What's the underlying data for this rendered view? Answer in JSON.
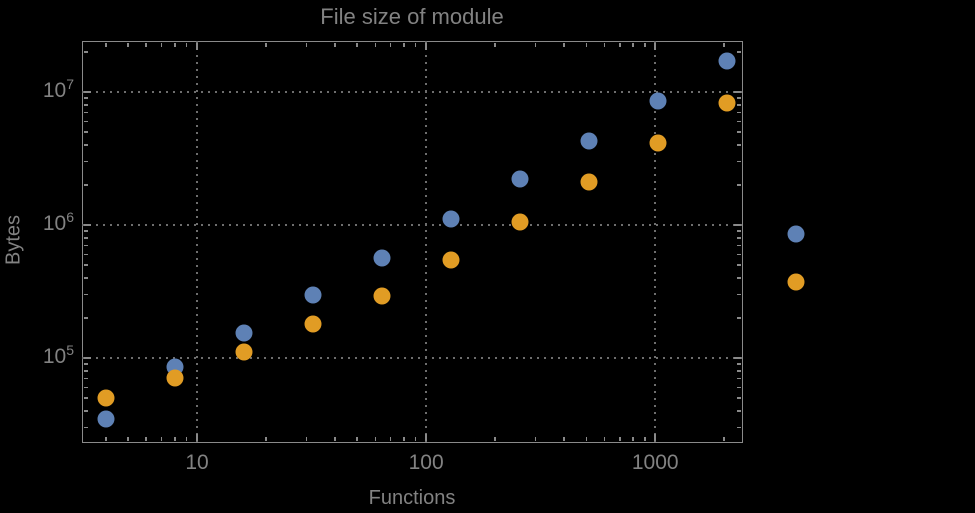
{
  "title": "File size of module",
  "colors": {
    "background": "#000000",
    "axis": "#8a8a8a",
    "text": "#828282",
    "grid": "#6e6e6e",
    "series_blue": "#5E81B5",
    "series_orange": "#E19C24"
  },
  "chart_data": {
    "type": "scatter",
    "title": "File size of module",
    "xlabel": "Functions",
    "ylabel": "Bytes",
    "x_scale": "log",
    "y_scale": "log",
    "grid": "dotted",
    "x_log_range": [
      0.498,
      3.383
    ],
    "y_log_range": [
      4.361,
      7.383
    ],
    "xlim": [
      3.15,
      2420
    ],
    "ylim": [
      23000,
      24200000
    ],
    "x_ticks": [
      {
        "value": 10,
        "label": "10"
      },
      {
        "value": 100,
        "label": "100"
      },
      {
        "value": 1000,
        "label": "1000"
      }
    ],
    "y_ticks": [
      {
        "value": 100000,
        "base": "10",
        "exp": "5"
      },
      {
        "value": 1000000,
        "base": "10",
        "exp": "6"
      },
      {
        "value": 10000000,
        "base": "10",
        "exp": "7"
      }
    ],
    "x": [
      4,
      8,
      16,
      32,
      64,
      128,
      256,
      512,
      1024,
      2048,
      4096
    ],
    "series": [
      {
        "name": "blue",
        "color": "#5E81B5",
        "values": [
          35000,
          86000,
          155000,
          300000,
          560000,
          1100000,
          2200000,
          4300000,
          8600000,
          17000000,
          860000
        ]
      },
      {
        "name": "orange",
        "color": "#E19C24",
        "values": [
          50000,
          71000,
          110000,
          180000,
          290000,
          550000,
          1050000,
          2100000,
          4100000,
          8300000,
          370000
        ]
      }
    ]
  }
}
